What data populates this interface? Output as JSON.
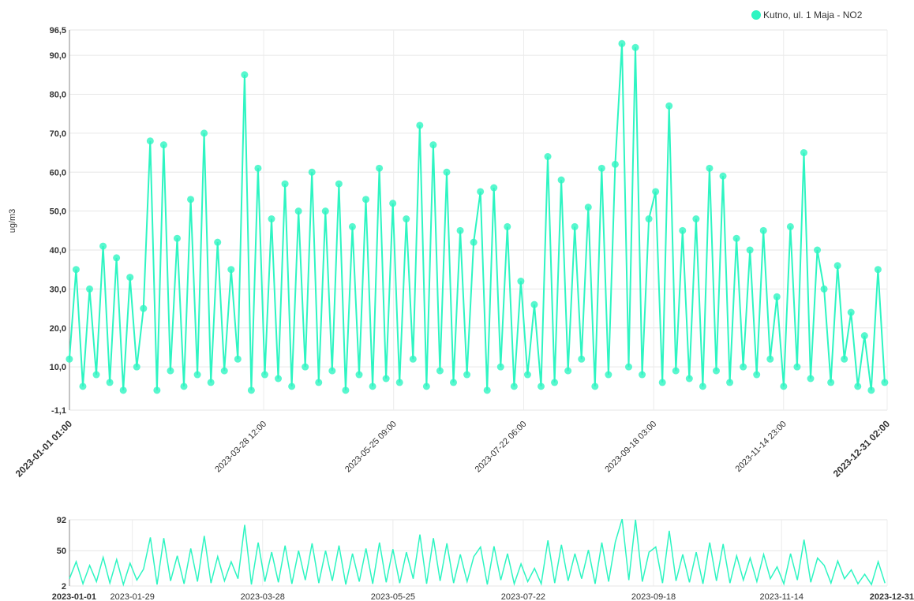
{
  "chart_data": [
    {
      "type": "line",
      "ylabel": "ug/m3",
      "x": [
        "2023-01-01",
        "2023-01-04",
        "2023-01-07",
        "2023-01-10",
        "2023-01-13",
        "2023-01-16",
        "2023-01-19",
        "2023-01-22",
        "2023-01-25",
        "2023-01-28",
        "2023-01-31",
        "2023-02-03",
        "2023-02-06",
        "2023-02-09",
        "2023-02-12",
        "2023-02-15",
        "2023-02-18",
        "2023-02-21",
        "2023-02-24",
        "2023-02-27",
        "2023-03-02",
        "2023-03-05",
        "2023-03-08",
        "2023-03-11",
        "2023-03-14",
        "2023-03-17",
        "2023-03-20",
        "2023-03-23",
        "2023-03-26",
        "2023-03-29",
        "2023-04-01",
        "2023-04-04",
        "2023-04-07",
        "2023-04-10",
        "2023-04-13",
        "2023-04-16",
        "2023-04-19",
        "2023-04-22",
        "2023-04-25",
        "2023-04-28",
        "2023-05-01",
        "2023-05-04",
        "2023-05-07",
        "2023-05-10",
        "2023-05-13",
        "2023-05-16",
        "2023-05-19",
        "2023-05-22",
        "2023-05-25",
        "2023-05-28",
        "2023-05-31",
        "2023-06-03",
        "2023-06-06",
        "2023-06-09",
        "2023-06-12",
        "2023-06-15",
        "2023-06-18",
        "2023-06-21",
        "2023-06-24",
        "2023-06-27",
        "2023-06-30",
        "2023-07-03",
        "2023-07-06",
        "2023-07-09",
        "2023-07-12",
        "2023-07-15",
        "2023-07-18",
        "2023-07-21",
        "2023-07-24",
        "2023-07-27",
        "2023-07-30",
        "2023-08-02",
        "2023-08-05",
        "2023-08-08",
        "2023-08-11",
        "2023-08-14",
        "2023-08-17",
        "2023-08-20",
        "2023-08-23",
        "2023-08-26",
        "2023-08-29",
        "2023-09-01",
        "2023-09-04",
        "2023-09-07",
        "2023-09-10",
        "2023-09-13",
        "2023-09-16",
        "2023-09-19",
        "2023-09-22",
        "2023-09-25",
        "2023-09-28",
        "2023-10-01",
        "2023-10-04",
        "2023-10-07",
        "2023-10-10",
        "2023-10-13",
        "2023-10-16",
        "2023-10-19",
        "2023-10-22",
        "2023-10-25",
        "2023-10-28",
        "2023-10-31",
        "2023-11-03",
        "2023-11-06",
        "2023-11-09",
        "2023-11-12",
        "2023-11-15",
        "2023-11-18",
        "2023-11-21",
        "2023-11-24",
        "2023-11-27",
        "2023-11-30",
        "2023-12-03",
        "2023-12-06",
        "2023-12-09",
        "2023-12-12",
        "2023-12-15",
        "2023-12-18",
        "2023-12-21",
        "2023-12-24",
        "2023-12-27",
        "2023-12-30"
      ],
      "series": [
        {
          "name": "Kutno, ul. 1 Maja - NO2",
          "color": "#2ef5c2",
          "values": [
            12,
            35,
            5,
            30,
            8,
            41,
            6,
            38,
            4,
            33,
            10,
            25,
            68,
            4,
            67,
            9,
            43,
            5,
            53,
            8,
            70,
            6,
            42,
            9,
            35,
            12,
            85,
            4,
            61,
            8,
            48,
            7,
            57,
            5,
            50,
            10,
            60,
            6,
            50,
            9,
            57,
            4,
            46,
            8,
            53,
            5,
            61,
            7,
            52,
            6,
            48,
            12,
            72,
            5,
            67,
            9,
            60,
            6,
            45,
            8,
            42,
            55,
            4,
            56,
            10,
            46,
            5,
            32,
            8,
            26,
            5,
            64,
            6,
            58,
            9,
            46,
            12,
            51,
            5,
            61,
            8,
            62,
            93,
            10,
            92,
            8,
            48,
            55,
            6,
            77,
            9,
            45,
            7,
            48,
            5,
            61,
            9,
            59,
            6,
            43,
            10,
            40,
            8,
            45,
            12,
            28,
            5,
            46,
            10,
            65,
            7,
            40,
            30,
            6,
            36,
            12,
            24,
            5,
            18,
            4,
            35,
            6
          ]
        }
      ],
      "xlim": [
        "2023-01-01 01:00",
        "2023-12-31 02:00"
      ],
      "xticks": [
        "2023-01-01 01:00",
        "2023-03-28 12:00",
        "2023-05-25 09:00",
        "2023-07-22 06:00",
        "2023-09-18 03:00",
        "2023-11-14 23:00",
        "2023-12-31 02:00"
      ],
      "ylim": [
        -1.1,
        96.5
      ],
      "yticks": [
        {
          "value": -1.1,
          "label": "-1,1"
        },
        {
          "value": 10,
          "label": "10,0"
        },
        {
          "value": 20,
          "label": "20,0"
        },
        {
          "value": 30,
          "label": "30,0"
        },
        {
          "value": 40,
          "label": "40,0"
        },
        {
          "value": 50,
          "label": "50,0"
        },
        {
          "value": 60,
          "label": "60,0"
        },
        {
          "value": 70,
          "label": "70,0"
        },
        {
          "value": 80,
          "label": "80,0"
        },
        {
          "value": 90,
          "label": "90,0"
        },
        {
          "value": 96.5,
          "label": "96,5"
        }
      ],
      "grid": true,
      "legend": "top-right"
    },
    {
      "type": "navigator",
      "xlim": [
        "2023-01-01",
        "2023-12-31"
      ],
      "xticks": [
        "2023-01-01",
        "2023-01-29",
        "2023-03-28",
        "2023-05-25",
        "2023-07-22",
        "2023-09-18",
        "2023-11-14",
        "2023-12-31"
      ],
      "ylim": [
        2,
        92
      ],
      "yticks": [
        2,
        50,
        92
      ],
      "grid": true
    }
  ]
}
